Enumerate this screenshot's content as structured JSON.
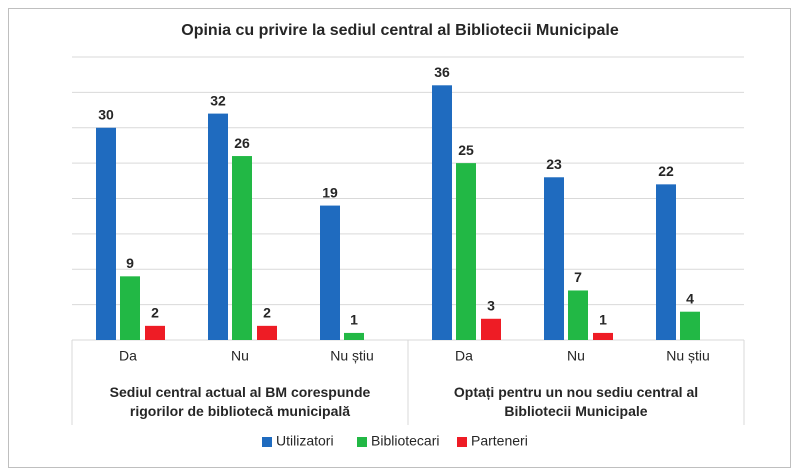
{
  "chart_data": {
    "type": "bar",
    "title": "Opinia cu privire la sediul central al Bibliotecii Municipale",
    "categories": [
      "Da",
      "Nu",
      "Nu știu",
      "Da",
      "Nu",
      "Nu știu"
    ],
    "groups": [
      "Sediul central actual al BM corespunde rigorilor de bibliotecă municipală",
      "Optați pentru un nou sediu central al Bibliotecii Municipale"
    ],
    "series": [
      {
        "name": "Utilizatori",
        "color": "#1f6bbf",
        "values": [
          30,
          32,
          19,
          36,
          23,
          22
        ]
      },
      {
        "name": "Bibliotecari",
        "color": "#22b845",
        "values": [
          9,
          26,
          1,
          25,
          7,
          4
        ]
      },
      {
        "name": "Parteneri",
        "color": "#ee1c25",
        "values": [
          2,
          2,
          null,
          3,
          1,
          null
        ]
      }
    ],
    "ylim": [
      0,
      40
    ],
    "yticks": [
      0,
      5,
      10,
      15,
      20,
      25,
      30,
      35,
      40
    ],
    "grid": true,
    "legend": "bottom"
  }
}
